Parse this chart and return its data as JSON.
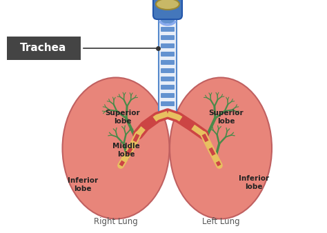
{
  "background_color": "#ffffff",
  "label_trachea": "Trachea",
  "label_right_lung": "Right Lung",
  "label_left_lung": "Left Lung",
  "label_sup_lobe_r": "Superior\nlobe",
  "label_mid_lobe": "Middle\nlobe",
  "label_inf_lobe_r": "Inferior\nlobe",
  "label_sup_lobe_l": "Superior\nlobe",
  "label_inf_lobe_l": "Inferior\nlobe",
  "lung_color": "#E8857A",
  "lung_edge_color": "#C06060",
  "trachea_blue": "#5588cc",
  "trachea_white": "#e8eef8",
  "bronchi_red": "#cc4444",
  "bronchi_gold": "#e8c060",
  "branches_green": "#4a8a4a",
  "larynx_blue": "#4477bb",
  "larynx_gold": "#c8b866",
  "label_box_color": "#444444",
  "label_text_color": "#ffffff",
  "annot_color": "#222222",
  "lung_label_color": "#555555"
}
